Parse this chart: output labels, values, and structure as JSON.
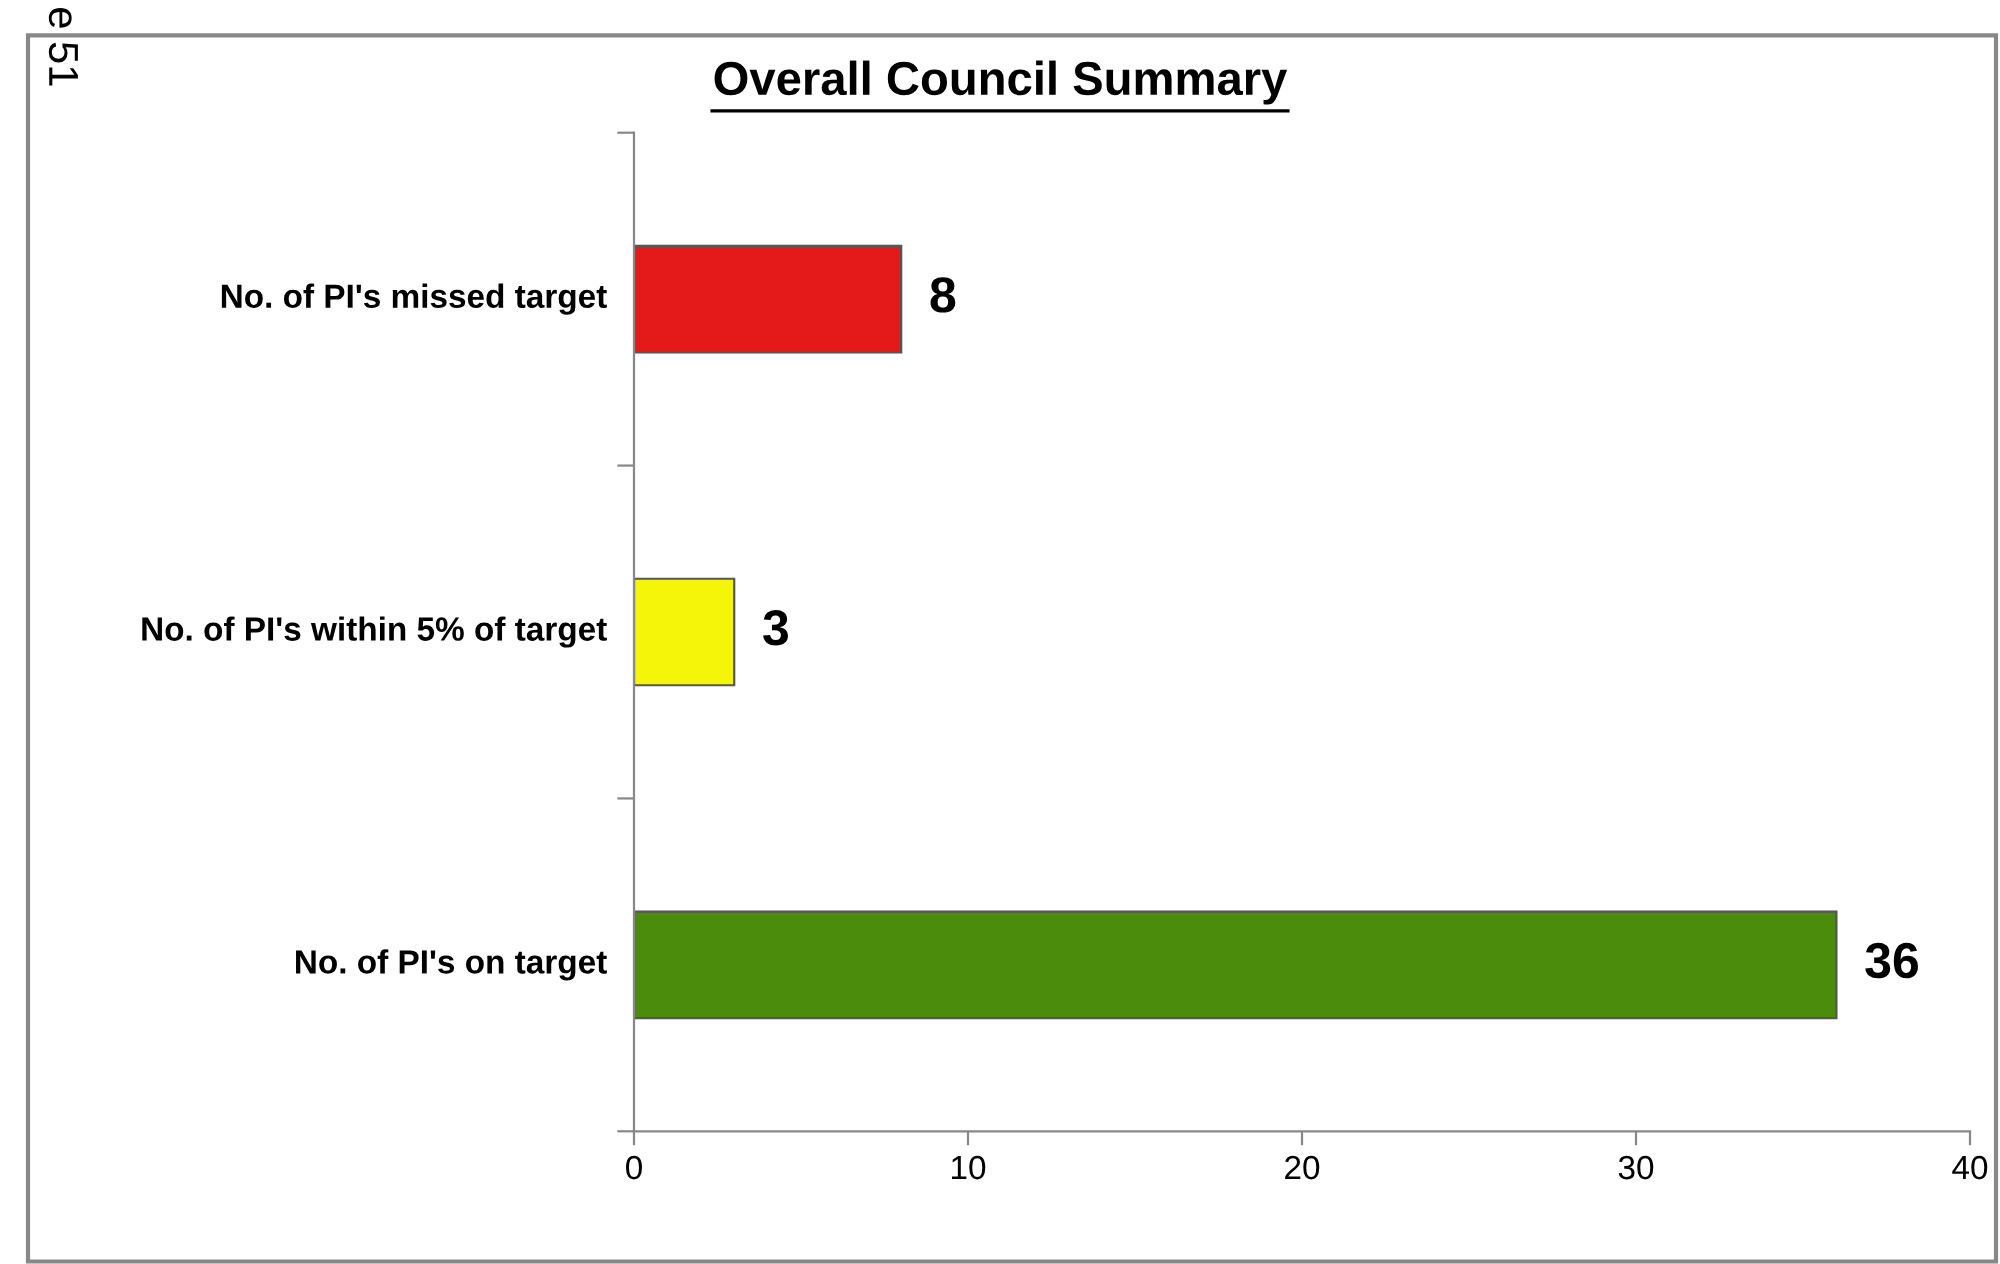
{
  "chart_data": {
    "type": "bar",
    "orientation": "horizontal",
    "title": "Overall Council Summary",
    "categories": [
      "No. of PI's missed target",
      "No. of PI's within 5% of target",
      "No. of PI's on target"
    ],
    "values": [
      8,
      3,
      36
    ],
    "colors": [
      "#e41a1a",
      "#f5f50a",
      "#4c8c0c"
    ],
    "xlim": [
      0,
      40
    ],
    "xticks": [
      0,
      10,
      20,
      30,
      40
    ],
    "grid": false,
    "data_labels": true,
    "annotations": [
      "e 51"
    ]
  }
}
